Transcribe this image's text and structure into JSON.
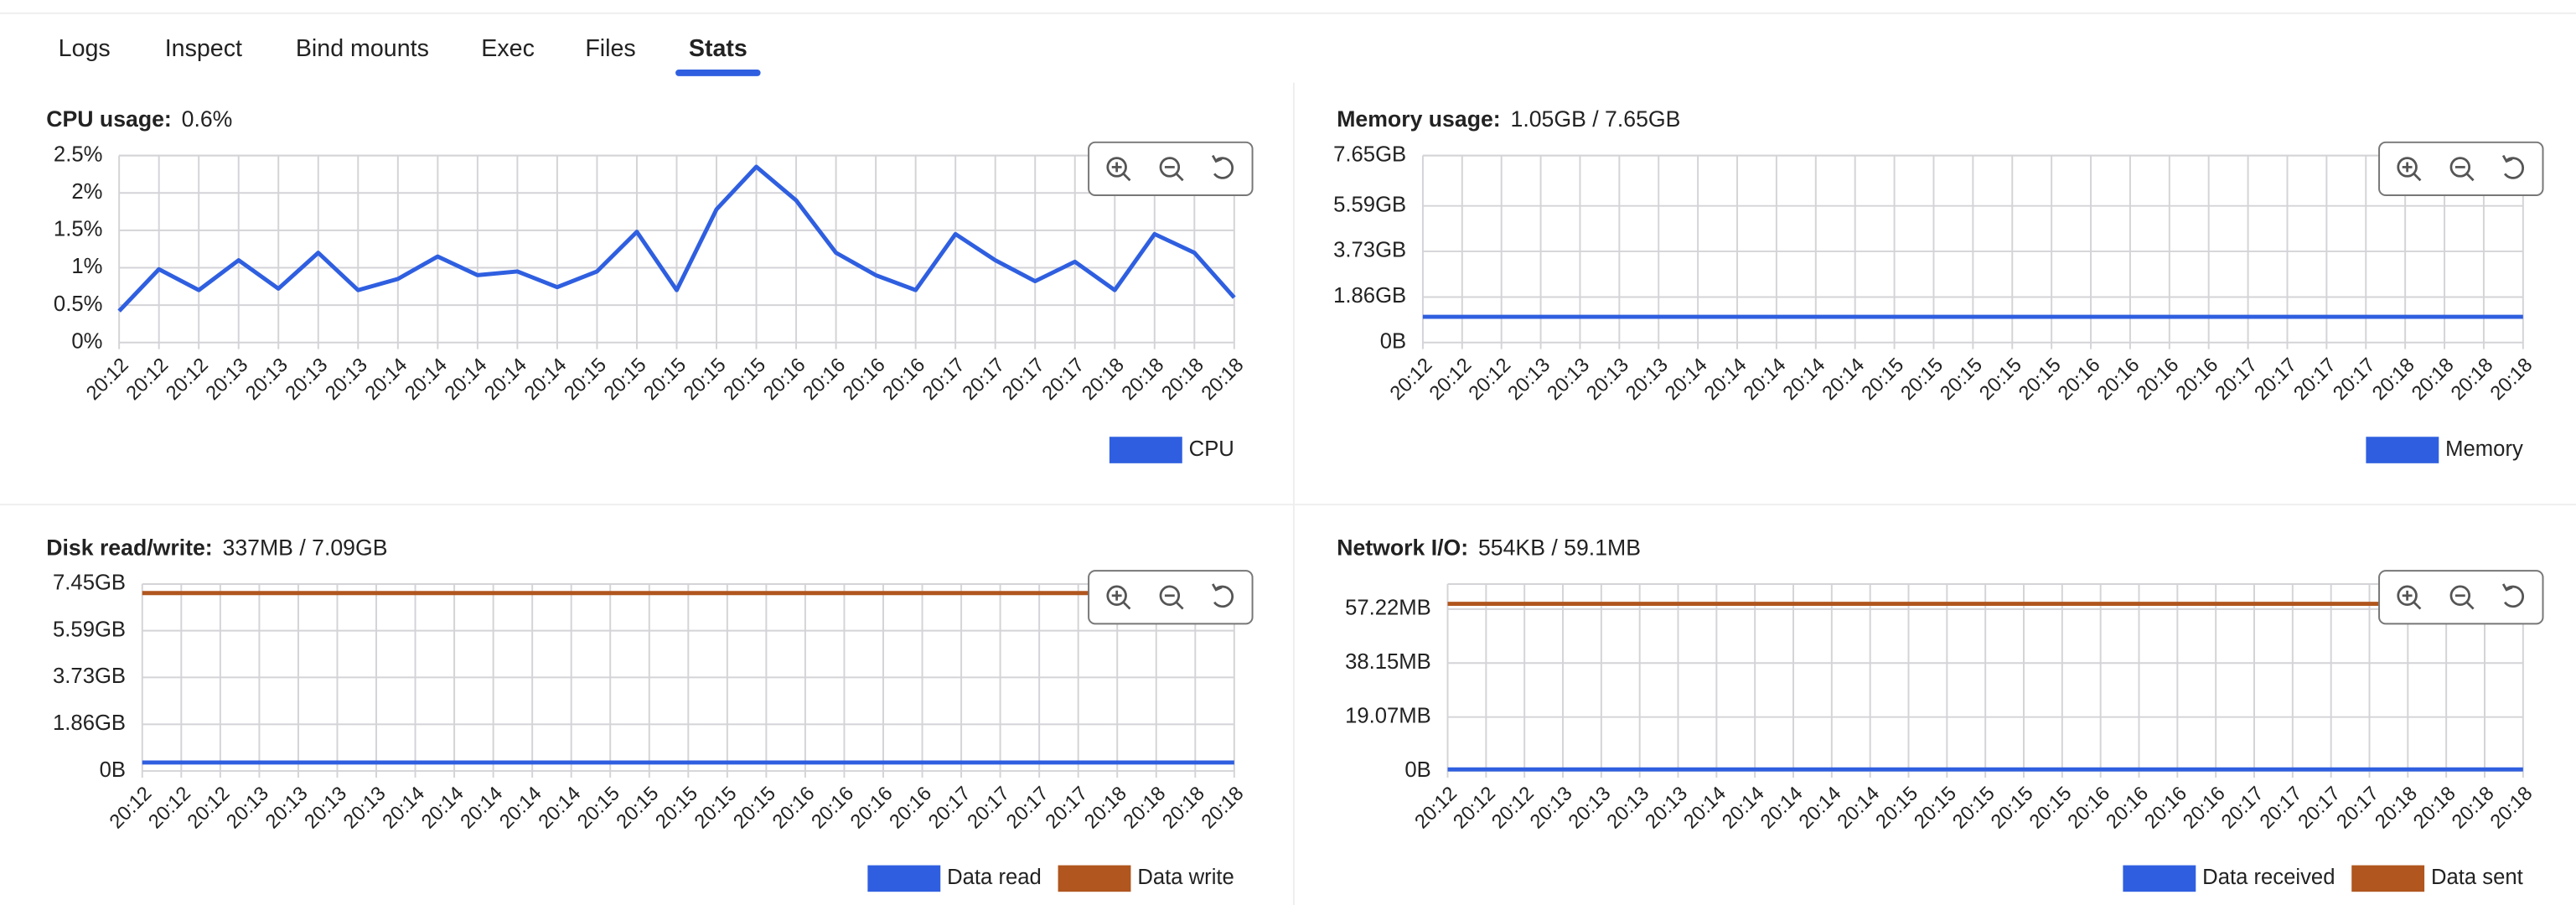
{
  "tabs": [
    "Logs",
    "Inspect",
    "Bind mounts",
    "Exec",
    "Files",
    "Stats"
  ],
  "active_tab": 5,
  "chart_data": [
    {
      "type": "line",
      "title": "CPU usage:",
      "subtitle": "0.6%",
      "categories": [
        "20:12",
        "20:12",
        "20:12",
        "20:13",
        "20:13",
        "20:13",
        "20:13",
        "20:14",
        "20:14",
        "20:14",
        "20:14",
        "20:14",
        "20:15",
        "20:15",
        "20:15",
        "20:15",
        "20:15",
        "20:16",
        "20:16",
        "20:16",
        "20:16",
        "20:17",
        "20:17",
        "20:17",
        "20:17",
        "20:18",
        "20:18",
        "20:18",
        "20:18"
      ],
      "series": [
        {
          "name": "CPU",
          "color": "#2f5fe0",
          "values": [
            0.42,
            0.98,
            0.7,
            1.1,
            0.72,
            1.2,
            0.7,
            0.85,
            1.15,
            0.9,
            0.95,
            0.74,
            0.95,
            1.48,
            0.7,
            1.78,
            2.35,
            1.9,
            1.2,
            0.9,
            0.7,
            1.45,
            1.1,
            0.82,
            1.08,
            0.7,
            1.45,
            1.2,
            0.6
          ]
        }
      ],
      "ylim": [
        0,
        2.5
      ],
      "yticks": [
        {
          "value": 0,
          "label": "0%"
        },
        {
          "value": 0.5,
          "label": "0.5%"
        },
        {
          "value": 1,
          "label": "1%"
        },
        {
          "value": 1.5,
          "label": "1.5%"
        },
        {
          "value": 2,
          "label": "2%"
        },
        {
          "value": 2.5,
          "label": "2.5%"
        }
      ],
      "grid": true,
      "legend": "bottom-right"
    },
    {
      "type": "line",
      "title": "Memory usage:",
      "subtitle": "1.05GB / 7.65GB",
      "categories": [
        "20:12",
        "20:12",
        "20:12",
        "20:13",
        "20:13",
        "20:13",
        "20:13",
        "20:14",
        "20:14",
        "20:14",
        "20:14",
        "20:14",
        "20:15",
        "20:15",
        "20:15",
        "20:15",
        "20:15",
        "20:16",
        "20:16",
        "20:16",
        "20:16",
        "20:17",
        "20:17",
        "20:17",
        "20:17",
        "20:18",
        "20:18",
        "20:18",
        "20:18"
      ],
      "series": [
        {
          "name": "Memory",
          "color": "#2f5fe0",
          "values": [
            1.05,
            1.05,
            1.05,
            1.05,
            1.05,
            1.05,
            1.05,
            1.05,
            1.05,
            1.05,
            1.05,
            1.05,
            1.05,
            1.05,
            1.05,
            1.05,
            1.05,
            1.05,
            1.05,
            1.05,
            1.05,
            1.05,
            1.05,
            1.05,
            1.05,
            1.05,
            1.05,
            1.05,
            1.05
          ]
        }
      ],
      "ylim": [
        0,
        7.65
      ],
      "yticks": [
        {
          "value": 0,
          "label": "0B"
        },
        {
          "value": 1.86,
          "label": "1.86GB"
        },
        {
          "value": 3.73,
          "label": "3.73GB"
        },
        {
          "value": 5.59,
          "label": "5.59GB"
        },
        {
          "value": 7.65,
          "label": "7.65GB"
        }
      ],
      "grid": true,
      "legend": "bottom-right"
    },
    {
      "type": "line",
      "title": "Disk read/write:",
      "subtitle": "337MB / 7.09GB",
      "categories": [
        "20:12",
        "20:12",
        "20:12",
        "20:13",
        "20:13",
        "20:13",
        "20:13",
        "20:14",
        "20:14",
        "20:14",
        "20:14",
        "20:14",
        "20:15",
        "20:15",
        "20:15",
        "20:15",
        "20:15",
        "20:16",
        "20:16",
        "20:16",
        "20:16",
        "20:17",
        "20:17",
        "20:17",
        "20:17",
        "20:18",
        "20:18",
        "20:18",
        "20:18"
      ],
      "series": [
        {
          "name": "Data read",
          "color": "#2f5fe0",
          "values": [
            0.337,
            0.337,
            0.337,
            0.337,
            0.337,
            0.337,
            0.337,
            0.337,
            0.337,
            0.337,
            0.337,
            0.337,
            0.337,
            0.337,
            0.337,
            0.337,
            0.337,
            0.337,
            0.337,
            0.337,
            0.337,
            0.337,
            0.337,
            0.337,
            0.337,
            0.337,
            0.337,
            0.337,
            0.337
          ]
        },
        {
          "name": "Data write",
          "color": "#b0561e",
          "values": [
            7.09,
            7.09,
            7.09,
            7.09,
            7.09,
            7.09,
            7.09,
            7.09,
            7.09,
            7.09,
            7.09,
            7.09,
            7.09,
            7.09,
            7.09,
            7.09,
            7.09,
            7.09,
            7.09,
            7.09,
            7.09,
            7.09,
            7.09,
            7.09,
            7.09,
            7.09,
            7.09,
            7.09,
            7.09
          ]
        }
      ],
      "ylim": [
        0,
        7.45
      ],
      "yticks": [
        {
          "value": 0,
          "label": "0B"
        },
        {
          "value": 1.86,
          "label": "1.86GB"
        },
        {
          "value": 3.73,
          "label": "3.73GB"
        },
        {
          "value": 5.59,
          "label": "5.59GB"
        },
        {
          "value": 7.45,
          "label": "7.45GB"
        }
      ],
      "grid": true,
      "legend": "bottom-right"
    },
    {
      "type": "line",
      "title": "Network I/O:",
      "subtitle": "554KB / 59.1MB",
      "categories": [
        "20:12",
        "20:12",
        "20:12",
        "20:13",
        "20:13",
        "20:13",
        "20:13",
        "20:14",
        "20:14",
        "20:14",
        "20:14",
        "20:14",
        "20:15",
        "20:15",
        "20:15",
        "20:15",
        "20:15",
        "20:16",
        "20:16",
        "20:16",
        "20:16",
        "20:17",
        "20:17",
        "20:17",
        "20:17",
        "20:18",
        "20:18",
        "20:18",
        "20:18"
      ],
      "series": [
        {
          "name": "Data received",
          "color": "#2f5fe0",
          "values": [
            0.554,
            0.554,
            0.554,
            0.554,
            0.554,
            0.554,
            0.554,
            0.554,
            0.554,
            0.554,
            0.554,
            0.554,
            0.554,
            0.554,
            0.554,
            0.554,
            0.554,
            0.554,
            0.554,
            0.554,
            0.554,
            0.554,
            0.554,
            0.554,
            0.554,
            0.554,
            0.554,
            0.554,
            0.554
          ]
        },
        {
          "name": "Data sent",
          "color": "#b0561e",
          "values": [
            59.1,
            59.1,
            59.1,
            59.1,
            59.1,
            59.1,
            59.1,
            59.1,
            59.1,
            59.1,
            59.1,
            59.1,
            59.1,
            59.1,
            59.1,
            59.1,
            59.1,
            59.1,
            59.1,
            59.1,
            59.1,
            59.1,
            59.1,
            59.1,
            59.1,
            59.1,
            59.1,
            59.1,
            59.1
          ]
        }
      ],
      "ylim": [
        0,
        66.1
      ],
      "yticks": [
        {
          "value": 0,
          "label": "0B"
        },
        {
          "value": 19.07,
          "label": "19.07MB"
        },
        {
          "value": 38.15,
          "label": "38.15MB"
        },
        {
          "value": 57.22,
          "label": "57.22MB"
        }
      ],
      "grid": true,
      "legend": "bottom-right"
    }
  ]
}
